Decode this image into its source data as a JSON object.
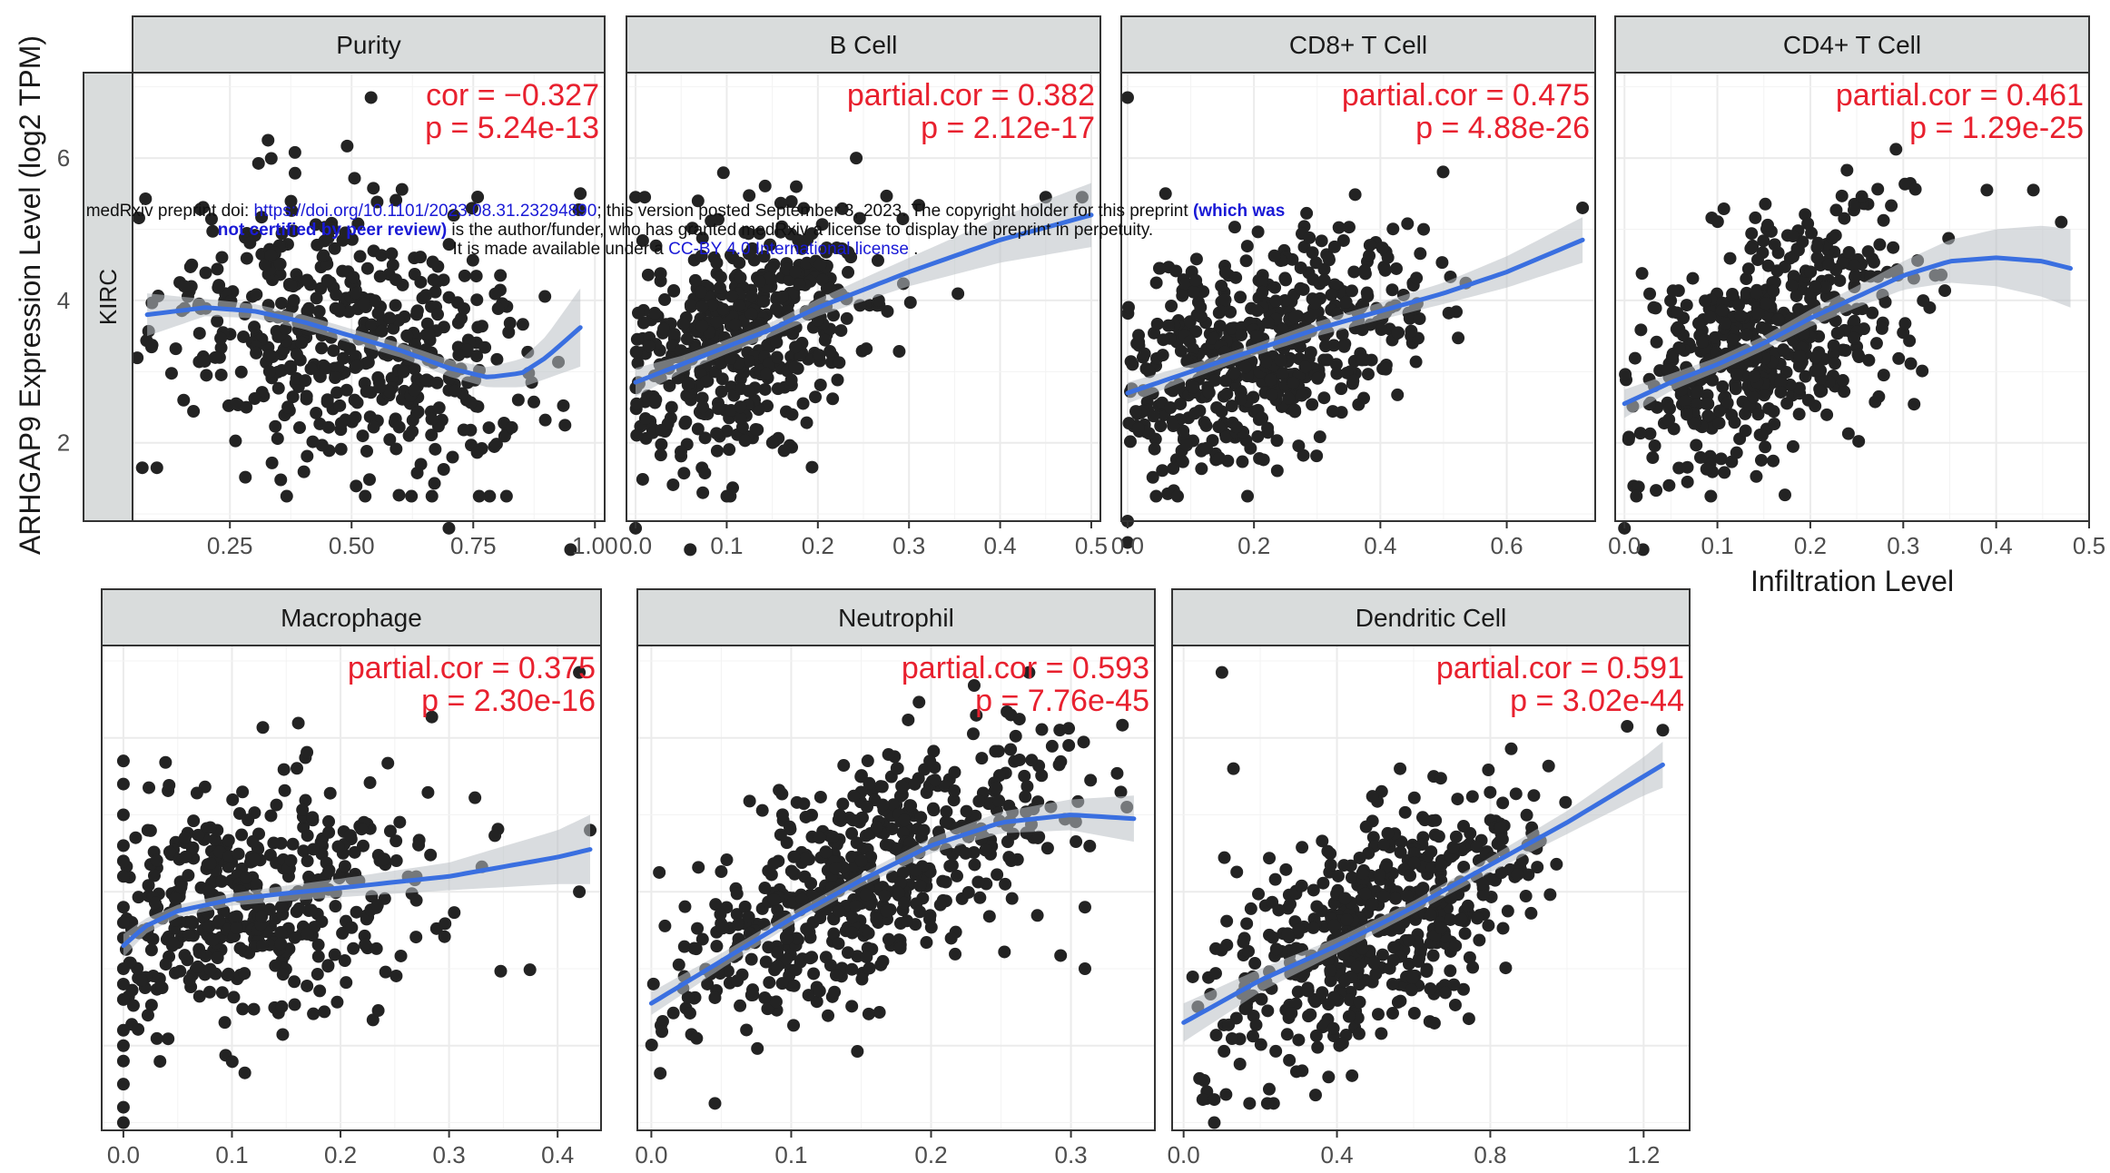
{
  "figure": {
    "y_axis_title": "ARHGAP9 Expression Level (log2 TPM)",
    "x_axis_title": "Infiltration Level",
    "row_label": "KIRC"
  },
  "notice": {
    "part1": "medRxiv preprint doi: ",
    "doi_link": "https://doi.org/10.1101/2023.08.31.23294890",
    "part2": "; this version posted September 3, 2023. The copyright holder for this preprint ",
    "bold": "(which was not certified by peer review)",
    "part3": " is the author/funder, who has granted medRxiv a license to display the preprint in perpetuity.",
    "part4": "It is made available under a ",
    "license_link": "CC-BY 4.0 International license",
    "part5": " ."
  },
  "colors": {
    "points": "#232323",
    "fit_line": "#3a6fe0",
    "band": "#b9bfc4",
    "strip_fill": "#d9dcdc",
    "stat_text": "#e8202e"
  },
  "chart_data": [
    {
      "type": "scatter",
      "title": "Purity",
      "stat1": "cor = −0.327",
      "stat2": "p = 5.24e-13",
      "xlim": [
        0.05,
        1.02
      ],
      "ylim": [
        0.9,
        7.2
      ],
      "xticks": [
        0.25,
        0.5,
        0.75,
        1.0
      ],
      "xtick_labels": [
        "0.25",
        "0.50",
        "0.75",
        "1.00"
      ],
      "yticks": [
        2,
        4,
        6
      ],
      "ytick_labels": [
        "2",
        "4",
        "6"
      ],
      "fit_x": [
        0.08,
        0.2,
        0.3,
        0.4,
        0.5,
        0.6,
        0.7,
        0.78,
        0.85,
        0.9,
        0.97
      ],
      "fit_y": [
        3.8,
        3.9,
        3.85,
        3.7,
        3.5,
        3.3,
        3.05,
        2.92,
        2.98,
        3.2,
        3.62
      ],
      "band": [
        0.3,
        0.12,
        0.1,
        0.1,
        0.1,
        0.1,
        0.12,
        0.14,
        0.2,
        0.3,
        0.55
      ],
      "cx": 0.5,
      "sx": 0.2,
      "xmin": 0.05,
      "xmax": 0.97,
      "resid": 0.95,
      "n": 500,
      "seed": 11,
      "extra": [
        [
          0.54,
          6.85
        ],
        [
          0.07,
          1.65
        ],
        [
          0.1,
          1.65
        ],
        [
          0.95,
          0.5
        ],
        [
          0.7,
          0.8
        ],
        [
          0.97,
          5.5
        ]
      ]
    },
    {
      "type": "scatter",
      "title": "B Cell",
      "stat1": "partial.cor = 0.382",
      "stat2": "p = 2.12e-17",
      "xlim": [
        -0.01,
        0.51
      ],
      "ylim": [
        0.9,
        7.2
      ],
      "xticks": [
        0,
        0.1,
        0.2,
        0.3,
        0.4,
        0.5
      ],
      "xtick_labels": [
        "0.0",
        "0.1",
        "0.2",
        "0.3",
        "0.4",
        "0.5"
      ],
      "yticks": [],
      "ytick_labels": [],
      "fit_x": [
        0.0,
        0.05,
        0.1,
        0.15,
        0.2,
        0.3,
        0.4,
        0.5
      ],
      "fit_y": [
        2.85,
        3.1,
        3.35,
        3.6,
        3.9,
        4.4,
        4.85,
        5.2
      ],
      "band": [
        0.2,
        0.12,
        0.1,
        0.1,
        0.12,
        0.2,
        0.32,
        0.45
      ],
      "cx": 0.1,
      "sx": 0.08,
      "xmin": 0.0,
      "xmax": 0.5,
      "resid": 0.8,
      "n": 500,
      "seed": 23,
      "extra": [
        [
          0.0,
          5.45
        ],
        [
          0.01,
          5.45
        ],
        [
          0.45,
          5.45
        ],
        [
          0.49,
          5.45
        ],
        [
          0.06,
          0.5
        ],
        [
          0.0,
          0.8
        ]
      ]
    },
    {
      "type": "scatter",
      "title": "CD8+ T Cell",
      "stat1": "partial.cor = 0.475",
      "stat2": "p = 4.88e-26",
      "xlim": [
        -0.01,
        0.74
      ],
      "ylim": [
        0.9,
        7.2
      ],
      "xticks": [
        0,
        0.2,
        0.4,
        0.6
      ],
      "xtick_labels": [
        "0.0",
        "0.2",
        "0.4",
        "0.6"
      ],
      "yticks": [],
      "ytick_labels": [],
      "fit_x": [
        0.0,
        0.1,
        0.2,
        0.3,
        0.4,
        0.5,
        0.6,
        0.72
      ],
      "fit_y": [
        2.7,
        3.0,
        3.3,
        3.6,
        3.85,
        4.1,
        4.4,
        4.85
      ],
      "band": [
        0.15,
        0.1,
        0.08,
        0.1,
        0.12,
        0.15,
        0.22,
        0.32
      ],
      "cx": 0.2,
      "sx": 0.14,
      "xmin": 0.0,
      "xmax": 0.72,
      "resid": 0.75,
      "n": 520,
      "seed": 37,
      "extra": [
        [
          0.0,
          6.85
        ],
        [
          0.0,
          0.6
        ],
        [
          0.0,
          0.9
        ],
        [
          0.06,
          5.5
        ],
        [
          0.72,
          5.3
        ]
      ]
    },
    {
      "type": "scatter",
      "title": "CD4+ T Cell",
      "stat1": "partial.cor = 0.461",
      "stat2": "p = 1.29e-25",
      "xlim": [
        -0.01,
        0.5
      ],
      "ylim": [
        0.9,
        7.2
      ],
      "xticks": [
        0,
        0.1,
        0.2,
        0.3,
        0.4,
        0.5
      ],
      "xtick_labels": [
        "0.0",
        "0.1",
        "0.2",
        "0.3",
        "0.4",
        "0.5"
      ],
      "yticks": [],
      "ytick_labels": [],
      "fit_x": [
        0.0,
        0.05,
        0.1,
        0.15,
        0.2,
        0.25,
        0.3,
        0.35,
        0.4,
        0.45,
        0.48
      ],
      "fit_y": [
        2.55,
        2.85,
        3.1,
        3.4,
        3.75,
        4.05,
        4.35,
        4.55,
        4.6,
        4.55,
        4.45
      ],
      "band": [
        0.2,
        0.12,
        0.1,
        0.1,
        0.12,
        0.15,
        0.2,
        0.3,
        0.4,
        0.5,
        0.55
      ],
      "cx": 0.15,
      "sx": 0.08,
      "xmin": 0.0,
      "xmax": 0.48,
      "resid": 0.8,
      "n": 520,
      "seed": 41,
      "extra": [
        [
          0.0,
          0.8
        ],
        [
          0.02,
          0.5
        ],
        [
          0.39,
          5.55
        ],
        [
          0.44,
          5.55
        ],
        [
          0.47,
          5.1
        ]
      ]
    },
    {
      "type": "scatter",
      "title": "Macrophage",
      "stat1": "partial.cor = 0.375",
      "stat2": "p = 2.30e-16",
      "xlim": [
        -0.02,
        0.44
      ],
      "ylim": [
        0.9,
        7.2
      ],
      "xticks": [
        0,
        0.1,
        0.2,
        0.3,
        0.4
      ],
      "xtick_labels": [
        "0.0",
        "0.1",
        "0.2",
        "0.3",
        "0.4"
      ],
      "yticks": [],
      "ytick_labels": [],
      "fit_x": [
        0.0,
        0.02,
        0.05,
        0.1,
        0.15,
        0.2,
        0.3,
        0.4,
        0.43
      ],
      "fit_y": [
        3.3,
        3.55,
        3.75,
        3.9,
        3.98,
        4.05,
        4.2,
        4.45,
        4.55
      ],
      "band": [
        0.15,
        0.1,
        0.08,
        0.08,
        0.1,
        0.12,
        0.18,
        0.35,
        0.45
      ],
      "cx": 0.1,
      "sx": 0.1,
      "xmin": 0.0,
      "xmax": 0.42,
      "resid": 0.8,
      "n": 440,
      "seed": 53,
      "extra": [
        [
          0.0,
          1.0
        ],
        [
          0.0,
          1.2
        ],
        [
          0.0,
          1.5
        ],
        [
          0.0,
          1.8
        ],
        [
          0.0,
          2.2
        ],
        [
          0.0,
          2.6
        ],
        [
          0.0,
          3.0
        ],
        [
          0.0,
          3.4
        ],
        [
          0.0,
          3.8
        ],
        [
          0.0,
          4.2
        ],
        [
          0.0,
          4.6
        ],
        [
          0.0,
          5.0
        ],
        [
          0.0,
          5.4
        ],
        [
          0.0,
          5.7
        ],
        [
          0.0,
          2.0
        ],
        [
          0.0,
          2.8
        ],
        [
          0.0,
          3.6
        ],
        [
          0.0,
          4.4
        ],
        [
          0.42,
          6.85
        ],
        [
          0.43,
          4.8
        ],
        [
          0.42,
          4.0
        ]
      ]
    },
    {
      "type": "scatter",
      "title": "Neutrophil",
      "stat1": "partial.cor = 0.593",
      "stat2": "p = 7.76e-45",
      "xlim": [
        -0.01,
        0.36
      ],
      "ylim": [
        0.9,
        7.2
      ],
      "xticks": [
        0,
        0.1,
        0.2,
        0.3
      ],
      "xtick_labels": [
        "0.0",
        "0.1",
        "0.2",
        "0.3"
      ],
      "yticks": [],
      "ytick_labels": [],
      "fit_x": [
        0.0,
        0.05,
        0.1,
        0.15,
        0.2,
        0.25,
        0.3,
        0.345
      ],
      "fit_y": [
        2.55,
        3.1,
        3.65,
        4.15,
        4.6,
        4.9,
        5.0,
        4.95
      ],
      "band": [
        0.15,
        0.1,
        0.08,
        0.08,
        0.1,
        0.14,
        0.2,
        0.3
      ],
      "cx": 0.15,
      "sx": 0.07,
      "xmin": 0.0,
      "xmax": 0.345,
      "resid": 0.7,
      "n": 560,
      "seed": 67,
      "extra": [
        [
          0.27,
          6.85
        ],
        [
          0.31,
          3.8
        ],
        [
          0.31,
          3.0
        ],
        [
          0.34,
          5.1
        ]
      ]
    },
    {
      "type": "scatter",
      "title": "Dendritic Cell",
      "stat1": "partial.cor = 0.591",
      "stat2": "p = 3.02e-44",
      "xlim": [
        -0.03,
        1.32
      ],
      "ylim": [
        0.9,
        7.2
      ],
      "xticks": [
        0,
        0.4,
        0.8,
        1.2
      ],
      "xtick_labels": [
        "0.0",
        "0.4",
        "0.8",
        "1.2"
      ],
      "yticks": [],
      "ytick_labels": [],
      "fit_x": [
        0.0,
        0.2,
        0.4,
        0.6,
        0.8,
        1.0,
        1.2,
        1.25
      ],
      "fit_y": [
        2.3,
        2.85,
        3.3,
        3.8,
        4.35,
        4.9,
        5.5,
        5.65
      ],
      "band": [
        0.25,
        0.15,
        0.1,
        0.08,
        0.1,
        0.15,
        0.25,
        0.3
      ],
      "cx": 0.5,
      "sx": 0.22,
      "xmin": 0.0,
      "xmax": 1.25,
      "resid": 0.7,
      "n": 540,
      "seed": 79,
      "extra": [
        [
          0.1,
          6.85
        ],
        [
          0.05,
          1.3
        ],
        [
          0.08,
          1.3
        ],
        [
          0.08,
          1.0
        ],
        [
          1.25,
          6.1
        ],
        [
          0.13,
          5.6
        ]
      ]
    }
  ]
}
